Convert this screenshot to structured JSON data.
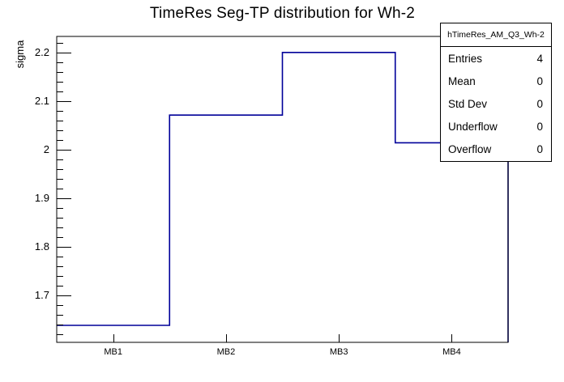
{
  "title": "TimeRes Seg-TP distribution for Wh-2",
  "y_axis_label": "sigma",
  "stats_box": {
    "header": "hTimeRes_AM_Q3_Wh-2",
    "rows": [
      {
        "label": "Entries",
        "value": "4"
      },
      {
        "label": "Mean",
        "value": "0"
      },
      {
        "label": "Std Dev",
        "value": "0"
      },
      {
        "label": "Underflow",
        "value": "0"
      },
      {
        "label": "Overflow",
        "value": "0"
      }
    ]
  },
  "colors": {
    "histogram_line": "#000099",
    "axis": "#000000",
    "background": "#ffffff"
  },
  "chart_data": {
    "type": "bar",
    "style": "root-step-histogram",
    "title": "TimeRes Seg-TP distribution for Wh-2",
    "categories": [
      "MB1",
      "MB2",
      "MB3",
      "MB4"
    ],
    "values": [
      1.638,
      2.071,
      2.2,
      2.014
    ],
    "xlabel": "",
    "ylabel": "sigma",
    "ylim": [
      1.603,
      2.233
    ],
    "yticks": [
      1.7,
      1.8,
      1.9,
      2,
      2.1,
      2.2
    ],
    "ytick_labels": [
      "1.7",
      "1.8",
      "1.9",
      "2",
      "2.1",
      "2.2"
    ],
    "minor_tick_step": 0.02,
    "grid": false,
    "legend": false
  }
}
